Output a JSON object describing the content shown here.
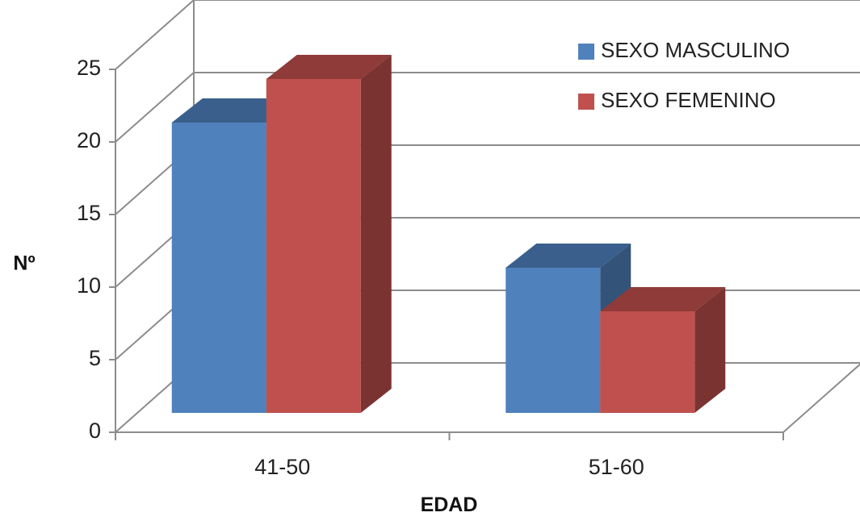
{
  "chart_data": {
    "type": "bar",
    "style": "3d-clustered-column",
    "categories": [
      "41-50",
      "51-60"
    ],
    "series": [
      {
        "name": "SEXO MASCULINO",
        "values": [
          20,
          10
        ],
        "color": "#4F81BD"
      },
      {
        "name": "SEXO FEMENINO",
        "values": [
          23,
          7
        ],
        "color": "#C0504D"
      }
    ],
    "xlabel": "EDAD",
    "ylabel": "Nº",
    "ylim": [
      0,
      25
    ],
    "yticks": [
      0,
      5,
      10,
      15,
      20,
      25
    ],
    "grid": true,
    "legend_position": "top-right"
  }
}
